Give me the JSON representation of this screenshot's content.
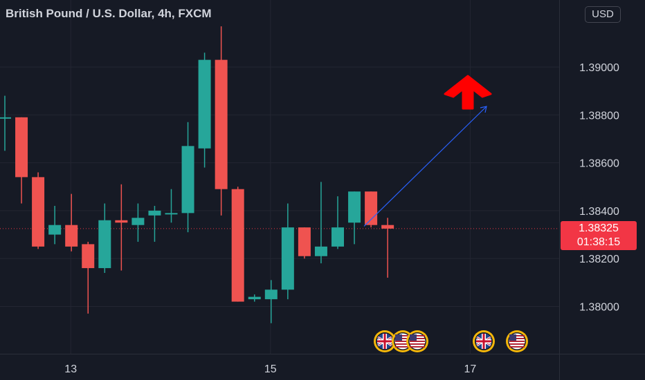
{
  "header": {
    "title": "British Pound / U.S. Dollar, 4h, FXCM",
    "currency_button": "USD"
  },
  "last_price": {
    "value": "1.38325",
    "countdown": "01:38:15",
    "color": "#f23645"
  },
  "colors": {
    "background": "#161a25",
    "grid": "#232632",
    "up": "#26a69a",
    "down": "#ef5350",
    "trendline": "#2962ff",
    "signal_arrow": "#ff0000"
  },
  "annotations": {
    "signal_arrow_icon": "up-arrow-icon",
    "event_icons": [
      "uk-flag-icon",
      "us-flag-icon",
      "us-flag-icon",
      "uk-flag-icon",
      "us-flag-icon"
    ]
  },
  "chart_data": {
    "type": "candlestick",
    "title": "British Pound / U.S. Dollar, 4h, FXCM",
    "y_ticks": [
      "1.38000",
      "1.38200",
      "1.38400",
      "1.38600",
      "1.38800",
      "1.39000"
    ],
    "x_ticks": [
      "13",
      "15",
      "17"
    ],
    "ylim": [
      1.3784,
      1.3923
    ],
    "grid": true,
    "last_price": 1.38325,
    "series": [
      {
        "o": 1.3879,
        "h": 1.3888,
        "l": 1.3865,
        "c": 1.3879
      },
      {
        "o": 1.3879,
        "h": 1.3879,
        "l": 1.3843,
        "c": 1.3854
      },
      {
        "o": 1.3854,
        "h": 1.3856,
        "l": 1.3824,
        "c": 1.3825
      },
      {
        "o": 1.383,
        "h": 1.3842,
        "l": 1.3826,
        "c": 1.3834
      },
      {
        "o": 1.3834,
        "h": 1.3847,
        "l": 1.3823,
        "c": 1.3825
      },
      {
        "o": 1.3826,
        "h": 1.3827,
        "l": 1.3797,
        "c": 1.3816
      },
      {
        "o": 1.3816,
        "h": 1.3843,
        "l": 1.3814,
        "c": 1.3836
      },
      {
        "o": 1.3836,
        "h": 1.3851,
        "l": 1.3815,
        "c": 1.3835
      },
      {
        "o": 1.3834,
        "h": 1.3843,
        "l": 1.3827,
        "c": 1.3837
      },
      {
        "o": 1.3838,
        "h": 1.3842,
        "l": 1.3827,
        "c": 1.384
      },
      {
        "o": 1.3839,
        "h": 1.3849,
        "l": 1.3835,
        "c": 1.3839
      },
      {
        "o": 1.3839,
        "h": 1.3877,
        "l": 1.3831,
        "c": 1.3867
      },
      {
        "o": 1.3866,
        "h": 1.3906,
        "l": 1.3858,
        "c": 1.3903
      },
      {
        "o": 1.3903,
        "h": 1.3917,
        "l": 1.3838,
        "c": 1.3849
      },
      {
        "o": 1.3849,
        "h": 1.385,
        "l": 1.3802,
        "c": 1.3802
      },
      {
        "o": 1.3803,
        "h": 1.3805,
        "l": 1.3802,
        "c": 1.3804
      },
      {
        "o": 1.3803,
        "h": 1.3811,
        "l": 1.3793,
        "c": 1.3807
      },
      {
        "o": 1.3807,
        "h": 1.3843,
        "l": 1.3803,
        "c": 1.3833
      },
      {
        "o": 1.3833,
        "h": 1.3833,
        "l": 1.382,
        "c": 1.3821
      },
      {
        "o": 1.3821,
        "h": 1.3852,
        "l": 1.3818,
        "c": 1.3825
      },
      {
        "o": 1.3825,
        "h": 1.3846,
        "l": 1.3824,
        "c": 1.3833
      },
      {
        "o": 1.3835,
        "h": 1.3848,
        "l": 1.3826,
        "c": 1.3848
      },
      {
        "o": 1.3848,
        "h": 1.3848,
        "l": 1.3833,
        "c": 1.3834
      },
      {
        "o": 1.3834,
        "h": 1.3837,
        "l": 1.3812,
        "c": 1.38325
      }
    ]
  }
}
